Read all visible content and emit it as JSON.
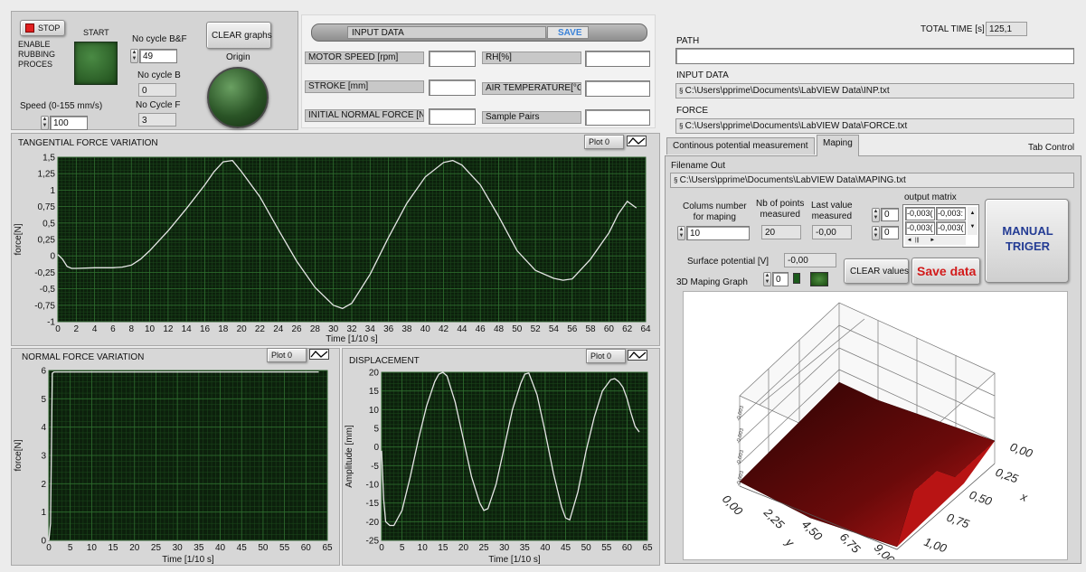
{
  "control": {
    "stop_label": "STOP",
    "enable_label": "ENABLE RUBBING PROCES",
    "start_label": "START",
    "no_cycle_bf_label": "No cycle B&F",
    "no_cycle_bf_value": "49",
    "no_cycle_b_label": "No cycle B",
    "no_cycle_b_value": "0",
    "no_cycle_f_label": "No Cycle F",
    "no_cycle_f_value": "3",
    "speed_label": "Speed (0-155 mm/s)",
    "speed_value": "100",
    "clear_graphs_label": "CLEAR  graphs",
    "origin_label": "Origin"
  },
  "input_data": {
    "title": "INPUT DATA",
    "save_label": "SAVE",
    "motor_speed_label": "MOTOR SPEED [rpm]",
    "motor_speed_value": "",
    "stroke_label": "STROKE [mm]",
    "stroke_value": "",
    "initial_force_label": "INITIAL NORMAL FORCE [N]",
    "initial_force_value": "",
    "rh_label": "RH[%]",
    "rh_value": "",
    "air_temp_label": "AIR TEMPERATURE[°C]",
    "air_temp_value": "",
    "sample_pairs_label": "Sample Pairs",
    "sample_pairs_value": ""
  },
  "files": {
    "total_time_label": "TOTAL TIME [s]",
    "total_time_value": "125,1",
    "path_label": "PATH",
    "path_value": "",
    "input_data_label": "INPUT DATA",
    "input_data_path": "C:\\Users\\pprime\\Documents\\LabVIEW Data\\INP.txt",
    "force_label": "FORCE",
    "force_path": "C:\\Users\\pprime\\Documents\\LabVIEW Data\\FORCE.txt"
  },
  "tabs": {
    "tab1": "Continous potential measurement",
    "tab2": "Maping",
    "tab_control_label": "Tab Control"
  },
  "maping": {
    "filename_label": "Filename Out",
    "filename_value": "C:\\Users\\pprime\\Documents\\LabVIEW Data\\MAPING.txt",
    "columns_label_1": "Colums number",
    "columns_label_2": "for maping",
    "columns_value": "10",
    "nb_points_label_1": "Nb of points",
    "nb_points_label_2": "measured",
    "nb_points_value": "20",
    "last_value_label_1": "Last value",
    "last_value_label_2": "measured",
    "last_value_value": "-0,00",
    "output_matrix_label": "output matrix",
    "matrix_row_index": "0",
    "matrix_col_index": "0",
    "matrix_cells": [
      "-0,003(",
      "-0,003:",
      "-0,003(",
      "-0,003("
    ],
    "surface_potential_label": "Surface potential [V]",
    "surface_potential_value": "-0,00",
    "graph_3d_label": "3D Maping Graph",
    "graph_3d_index": "0",
    "clear_values_label": "CLEAR  values",
    "save_data_label": "Save data",
    "manual_trigger_label": "MANUAL TRIGER",
    "axis_y_label": "y",
    "axis_x_label": "x",
    "y_ticks": [
      "0,00",
      "2,25",
      "4,50",
      "6,75",
      "9,00"
    ],
    "x_ticks": [
      "0,00",
      "0,25",
      "0,50",
      "0,75",
      "1,00"
    ],
    "z_ticks": [
      "-0,003",
      "-0,003",
      "-0,003",
      "-0,003"
    ]
  },
  "chart_data": [
    {
      "type": "line",
      "title": "TANGENTIAL FORCE VARIATION",
      "legend": "Plot 0",
      "xlabel": "Time [1/10 s]",
      "ylabel": "force[N]",
      "xlim": [
        0,
        64
      ],
      "ylim": [
        -1,
        1.5
      ],
      "x_ticks": [
        0,
        2,
        4,
        6,
        8,
        10,
        12,
        14,
        16,
        18,
        20,
        22,
        24,
        26,
        28,
        30,
        32,
        34,
        36,
        38,
        40,
        42,
        44,
        46,
        48,
        50,
        52,
        54,
        56,
        58,
        60,
        62,
        64
      ],
      "y_ticks": [
        -1,
        -0.75,
        -0.5,
        -0.25,
        0,
        0.25,
        0.5,
        0.75,
        1,
        1.25,
        1.5
      ],
      "y_tick_labels": [
        "-1",
        "-0,75",
        "-0,5",
        "-0,25",
        "0",
        "0,25",
        "0,5",
        "0,75",
        "1",
        "1,25",
        "1,5"
      ],
      "x": [
        0,
        0.5,
        1,
        1.5,
        2,
        4,
        6,
        7,
        8,
        9,
        10,
        12,
        14,
        16,
        17,
        18,
        19,
        20,
        22,
        24,
        26,
        28,
        30,
        31,
        32,
        34,
        36,
        38,
        40,
        42,
        43,
        44,
        46,
        48,
        50,
        52,
        54,
        55,
        56,
        58,
        60,
        61,
        62,
        63
      ],
      "y": [
        0.02,
        -0.05,
        -0.16,
        -0.19,
        -0.19,
        -0.18,
        -0.18,
        -0.17,
        -0.14,
        -0.05,
        0.08,
        0.38,
        0.72,
        1.08,
        1.28,
        1.43,
        1.45,
        1.28,
        0.9,
        0.4,
        -0.08,
        -0.48,
        -0.75,
        -0.8,
        -0.72,
        -0.28,
        0.28,
        0.8,
        1.2,
        1.42,
        1.45,
        1.38,
        1.08,
        0.6,
        0.08,
        -0.22,
        -0.34,
        -0.37,
        -0.35,
        -0.05,
        0.35,
        0.63,
        0.83,
        0.73
      ]
    },
    {
      "type": "line",
      "title": "NORMAL FORCE VARIATION",
      "legend": "Plot 0",
      "xlabel": "Time [1/10 s]",
      "ylabel": "force[N]",
      "xlim": [
        0,
        65
      ],
      "ylim": [
        0,
        6
      ],
      "x_ticks": [
        0,
        5,
        10,
        15,
        20,
        25,
        30,
        35,
        40,
        45,
        50,
        55,
        60,
        65
      ],
      "y_ticks": [
        0,
        1,
        2,
        3,
        4,
        5,
        6
      ],
      "x": [
        0,
        0.4,
        0.8,
        1.2,
        63
      ],
      "y": [
        0,
        0.6,
        5.9,
        5.95,
        5.95
      ]
    },
    {
      "type": "line",
      "title": "DISPLACEMENT",
      "legend": "Plot 0",
      "xlabel": "Time [1/10 s]",
      "ylabel": "Amplitude [mm]",
      "xlim": [
        0,
        65
      ],
      "ylim": [
        -25,
        20
      ],
      "x_ticks": [
        0,
        5,
        10,
        15,
        20,
        25,
        30,
        35,
        40,
        45,
        50,
        55,
        60,
        65
      ],
      "y_ticks": [
        -25,
        -20,
        -15,
        -10,
        -5,
        0,
        5,
        10,
        15,
        20
      ],
      "x": [
        0,
        0.5,
        1,
        2,
        3,
        5,
        7,
        9,
        11,
        13,
        14,
        15,
        16,
        18,
        20,
        22,
        24,
        25,
        26,
        28,
        30,
        32,
        34,
        35,
        36,
        38,
        40,
        42,
        44,
        45,
        46,
        48,
        50,
        52,
        54,
        56,
        57,
        58,
        59,
        60,
        61,
        62,
        63
      ],
      "y": [
        -1,
        -14,
        -20,
        -21,
        -21,
        -17,
        -8,
        2,
        11,
        17.5,
        19.5,
        20,
        19,
        12,
        2,
        -8,
        -15,
        -17,
        -16.5,
        -10,
        0,
        10,
        17,
        19.5,
        19.8,
        14,
        4,
        -7,
        -16,
        -19,
        -19.5,
        -12,
        -1,
        8,
        15,
        18,
        18.3,
        17.5,
        16,
        13,
        9,
        5.5,
        4
      ]
    }
  ]
}
